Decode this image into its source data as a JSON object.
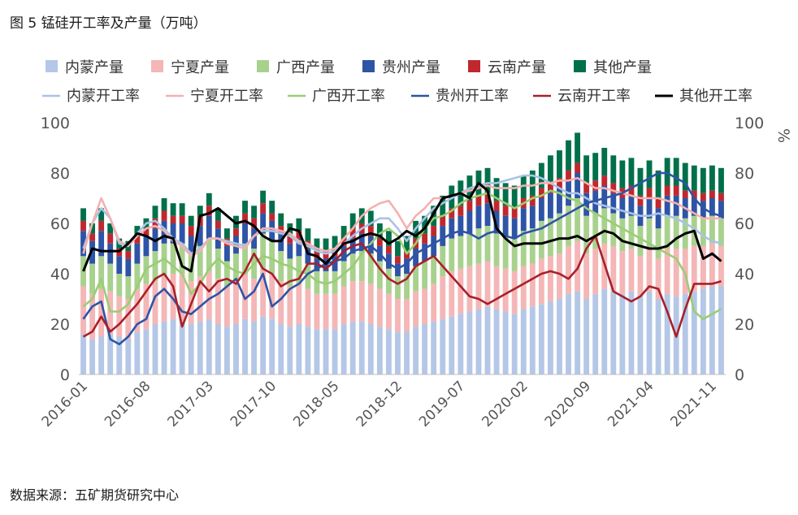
{
  "title": "图 5 锰硅开工率及产量（万吨）",
  "source": "数据来源：五矿期货研究中心",
  "chart_data": {
    "type": "bar",
    "stacked_bars": true,
    "y_left": {
      "min": 0,
      "max": 100,
      "ticks": [
        "0",
        "20",
        "40",
        "60",
        "80",
        "100"
      ]
    },
    "y_right": {
      "min": 0,
      "max": 100,
      "ticks": [
        "0",
        "20",
        "40",
        "60",
        "80",
        "100"
      ],
      "unit": "%"
    },
    "x_tick_labels": [
      "2016-01",
      "2016-08",
      "2017-03",
      "2017-10",
      "2018-05",
      "2018-12",
      "2019-07",
      "2020-02",
      "2020-09",
      "2021-04",
      "2021-11"
    ],
    "x_tick_every": 7,
    "n_points": 72,
    "bar_series": [
      {
        "name": "内蒙产量",
        "color": "#b4c7e7",
        "values": [
          16,
          14,
          15,
          16,
          15,
          14,
          17,
          18,
          20,
          21,
          22,
          21,
          20,
          21,
          22,
          20,
          19,
          20,
          22,
          21,
          23,
          22,
          20,
          19,
          20,
          19,
          18,
          18,
          18,
          20,
          21,
          21,
          20,
          19,
          18,
          17,
          17,
          19,
          20,
          21,
          22,
          23,
          24,
          25,
          26,
          27,
          26,
          25,
          24,
          26,
          27,
          28,
          29,
          30,
          32,
          33,
          30,
          32,
          34,
          33,
          32,
          33,
          31,
          33,
          30,
          32,
          31,
          32,
          33,
          34,
          35,
          35
        ]
      },
      {
        "name": "宁夏产量",
        "color": "#f4b6b6",
        "values": [
          19,
          18,
          19,
          17,
          16,
          16,
          17,
          18,
          17,
          18,
          18,
          19,
          17,
          18,
          19,
          18,
          16,
          17,
          18,
          17,
          19,
          18,
          17,
          16,
          16,
          15,
          14,
          14,
          14,
          15,
          16,
          16,
          16,
          15,
          14,
          13,
          13,
          14,
          14,
          15,
          17,
          18,
          18,
          18,
          18,
          18,
          17,
          17,
          17,
          17,
          17,
          18,
          18,
          18,
          19,
          20,
          18,
          18,
          18,
          18,
          17,
          17,
          16,
          17,
          16,
          18,
          19,
          18,
          18,
          17,
          17,
          16
        ]
      },
      {
        "name": "广西产量",
        "color": "#a9d18e",
        "values": [
          12,
          12,
          13,
          11,
          9,
          9,
          10,
          11,
          12,
          13,
          12,
          12,
          11,
          12,
          13,
          12,
          10,
          11,
          12,
          12,
          14,
          13,
          12,
          11,
          11,
          10,
          9,
          9,
          9,
          10,
          11,
          12,
          12,
          11,
          10,
          9,
          10,
          10,
          11,
          11,
          12,
          13,
          13,
          13,
          14,
          14,
          13,
          13,
          13,
          14,
          14,
          15,
          15,
          16,
          16,
          17,
          15,
          14,
          14,
          13,
          13,
          13,
          12,
          12,
          12,
          13,
          13,
          12,
          12,
          11,
          11,
          11
        ]
      },
      {
        "name": "贵州产量",
        "color": "#2e54a5",
        "values": [
          10,
          9,
          10,
          8,
          7,
          7,
          8,
          8,
          9,
          9,
          8,
          8,
          7,
          8,
          9,
          8,
          6,
          7,
          8,
          8,
          8,
          8,
          7,
          6,
          7,
          6,
          5,
          5,
          6,
          6,
          6,
          7,
          7,
          6,
          6,
          5,
          6,
          7,
          7,
          8,
          8,
          8,
          8,
          9,
          9,
          9,
          9,
          8,
          8,
          9,
          9,
          9,
          10,
          10,
          10,
          10,
          9,
          9,
          9,
          8,
          8,
          8,
          8,
          8,
          8,
          8,
          8,
          8,
          7,
          7,
          7,
          7
        ]
      },
      {
        "name": "云南产量",
        "color": "#c0282e",
        "values": [
          4,
          3,
          4,
          4,
          3,
          3,
          3,
          3,
          4,
          4,
          3,
          3,
          4,
          4,
          4,
          3,
          3,
          3,
          4,
          4,
          4,
          3,
          3,
          3,
          3,
          3,
          3,
          3,
          3,
          3,
          4,
          4,
          4,
          3,
          3,
          3,
          3,
          4,
          4,
          4,
          4,
          4,
          4,
          4,
          4,
          4,
          4,
          4,
          4,
          4,
          4,
          4,
          4,
          4,
          4,
          4,
          4,
          4,
          4,
          4,
          4,
          4,
          4,
          4,
          4,
          4,
          4,
          3,
          3,
          3,
          3,
          3
        ]
      },
      {
        "name": "其他产量",
        "color": "#00704a",
        "values": [
          5,
          4,
          5,
          4,
          4,
          4,
          4,
          4,
          5,
          5,
          5,
          5,
          4,
          4,
          5,
          5,
          4,
          5,
          5,
          5,
          5,
          5,
          5,
          5,
          5,
          5,
          5,
          5,
          5,
          5,
          6,
          6,
          6,
          6,
          6,
          6,
          6,
          7,
          7,
          8,
          8,
          9,
          10,
          10,
          10,
          10,
          9,
          9,
          9,
          9,
          10,
          10,
          11,
          11,
          12,
          12,
          11,
          11,
          11,
          11,
          11,
          11,
          11,
          11,
          11,
          11,
          11,
          11,
          10,
          10,
          10,
          10
        ]
      }
    ],
    "line_series": [
      {
        "name": "内蒙开工率",
        "color": "#a9c3e6",
        "values": [
          50,
          60,
          66,
          62,
          52,
          51,
          56,
          60,
          61,
          58,
          54,
          52,
          48,
          50,
          54,
          54,
          53,
          52,
          51,
          55,
          57,
          57,
          56,
          55,
          52,
          51,
          49,
          48,
          49,
          52,
          55,
          58,
          60,
          62,
          62,
          58,
          53,
          58,
          62,
          66,
          68,
          70,
          72,
          74,
          75,
          76,
          76,
          77,
          78,
          79,
          79,
          78,
          76,
          74,
          72,
          72,
          70,
          68,
          67,
          66,
          65,
          64,
          63,
          63,
          64,
          63,
          62,
          60,
          58,
          55,
          53,
          52
        ]
      },
      {
        "name": "宁夏开工率",
        "color": "#f4b1b0",
        "values": [
          48,
          60,
          70,
          62,
          53,
          51,
          55,
          58,
          59,
          57,
          53,
          51,
          47,
          49,
          54,
          54,
          52,
          51,
          50,
          55,
          58,
          58,
          57,
          56,
          53,
          52,
          50,
          49,
          50,
          54,
          58,
          63,
          66,
          68,
          69,
          64,
          58,
          63,
          66,
          70,
          70,
          71,
          72,
          73,
          74,
          75,
          74,
          74,
          74,
          75,
          75,
          76,
          76,
          77,
          77,
          78,
          76,
          74,
          74,
          73,
          72,
          71,
          70,
          70,
          70,
          69,
          68,
          66,
          64,
          62,
          62,
          62
        ]
      },
      {
        "name": "广西开工率",
        "color": "#9acd74",
        "values": [
          27,
          30,
          38,
          25,
          25,
          28,
          35,
          42,
          44,
          46,
          43,
          40,
          32,
          36,
          42,
          46,
          43,
          41,
          40,
          44,
          47,
          46,
          44,
          43,
          41,
          40,
          37,
          36,
          37,
          40,
          43,
          48,
          52,
          56,
          58,
          55,
          48,
          52,
          58,
          62,
          63,
          65,
          68,
          70,
          71,
          72,
          70,
          68,
          66,
          68,
          70,
          71,
          73,
          72,
          70,
          69,
          66,
          64,
          62,
          60,
          58,
          56,
          54,
          52,
          50,
          48,
          46,
          40,
          25,
          22,
          24,
          26
        ]
      },
      {
        "name": "贵州开工率",
        "color": "#2e54a5",
        "values": [
          22,
          27,
          29,
          14,
          12,
          15,
          20,
          22,
          31,
          34,
          30,
          25,
          24,
          27,
          30,
          32,
          35,
          38,
          30,
          33,
          40,
          27,
          30,
          34,
          36,
          40,
          42,
          44,
          45,
          46,
          49,
          50,
          51,
          48,
          44,
          42,
          44,
          48,
          50,
          52,
          54,
          56,
          57,
          56,
          54,
          56,
          57,
          55,
          54,
          56,
          57,
          58,
          60,
          62,
          64,
          66,
          68,
          69,
          70,
          71,
          72,
          74,
          76,
          78,
          80,
          80,
          78,
          76,
          70,
          66,
          64,
          63
        ]
      },
      {
        "name": "云南开工率",
        "color": "#a8202a",
        "values": [
          15,
          17,
          23,
          17,
          20,
          24,
          28,
          33,
          38,
          40,
          35,
          19,
          28,
          37,
          33,
          37,
          38,
          36,
          41,
          48,
          42,
          40,
          35,
          37,
          38,
          44,
          44,
          42,
          45,
          49,
          51,
          52,
          47,
          42,
          38,
          36,
          38,
          43,
          45,
          47,
          43,
          39,
          35,
          31,
          30,
          28,
          30,
          32,
          34,
          36,
          38,
          40,
          41,
          40,
          38,
          42,
          50,
          55,
          44,
          33,
          31,
          29,
          31,
          35,
          34,
          25,
          15,
          26,
          36,
          36,
          36,
          37
        ]
      },
      {
        "name": "其他开工率",
        "color": "#000000",
        "values": [
          41,
          50,
          49,
          49,
          49,
          52,
          56,
          55,
          53,
          55,
          54,
          43,
          41,
          63,
          64,
          66,
          63,
          60,
          61,
          59,
          55,
          53,
          53,
          58,
          57,
          48,
          47,
          44,
          48,
          52,
          53,
          55,
          56,
          55,
          52,
          54,
          57,
          55,
          58,
          64,
          70,
          71,
          72,
          70,
          76,
          73,
          58,
          54,
          51,
          52,
          52,
          52,
          53,
          54,
          54,
          55,
          53,
          55,
          57,
          56,
          53,
          52,
          51,
          50,
          50,
          51,
          54,
          56,
          57,
          46,
          48,
          45
        ]
      }
    ],
    "legend_position": "top"
  }
}
